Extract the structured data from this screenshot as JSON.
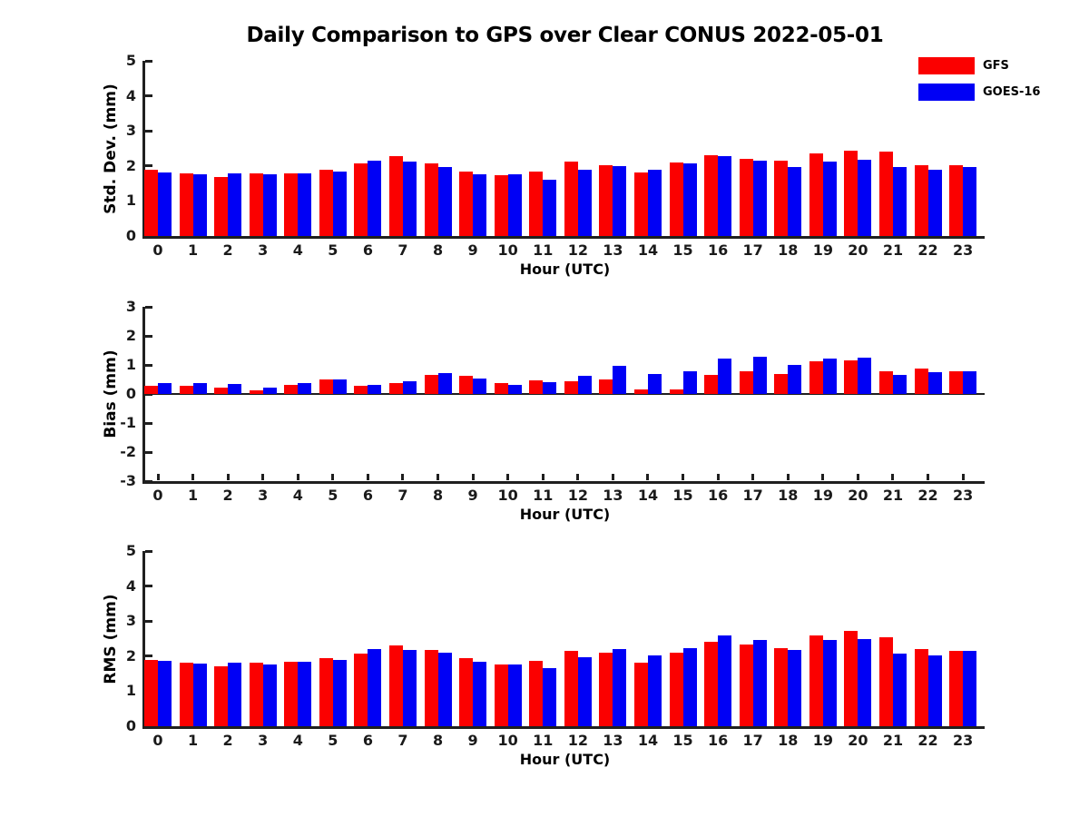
{
  "title": "Daily Comparison to GPS over Clear CONUS 2022-05-01",
  "legend": {
    "items": [
      {
        "label": "GFS",
        "color": "#fb0000"
      },
      {
        "label": "GOES-16",
        "color": "#0000f5"
      }
    ],
    "position": "top-right"
  },
  "chart_data": [
    {
      "type": "bar",
      "name": "stddev",
      "ylabel": "Std. Dev. (mm)",
      "xlabel": "Hour (UTC)",
      "ylim": [
        0,
        5
      ],
      "yticks": [
        0,
        1,
        2,
        3,
        4,
        5
      ],
      "grid": false,
      "categories": [
        0,
        1,
        2,
        3,
        4,
        5,
        6,
        7,
        8,
        9,
        10,
        11,
        12,
        13,
        14,
        15,
        16,
        17,
        18,
        19,
        20,
        21,
        22,
        23
      ],
      "series": [
        {
          "name": "GFS",
          "color": "#fb0000",
          "values": [
            1.88,
            1.8,
            1.68,
            1.8,
            1.8,
            1.9,
            2.06,
            2.29,
            2.08,
            1.84,
            1.74,
            1.83,
            2.12,
            2.02,
            1.82,
            2.1,
            2.3,
            2.21,
            2.15,
            2.36,
            2.44,
            2.41,
            2.01,
            2.03
          ]
        },
        {
          "name": "GOES-16",
          "color": "#0000f5",
          "values": [
            1.82,
            1.76,
            1.78,
            1.76,
            1.8,
            1.85,
            2.16,
            2.13,
            1.98,
            1.77,
            1.76,
            1.61,
            1.88,
            2.0,
            1.9,
            2.07,
            2.28,
            2.14,
            1.98,
            2.12,
            2.18,
            1.96,
            1.9,
            1.98
          ]
        }
      ]
    },
    {
      "type": "bar",
      "name": "bias",
      "ylabel": "Bias (mm)",
      "xlabel": "Hour (UTC)",
      "ylim": [
        -3,
        3
      ],
      "yticks": [
        -3,
        -2,
        -1,
        0,
        1,
        2,
        3
      ],
      "grid": false,
      "categories": [
        0,
        1,
        2,
        3,
        4,
        5,
        6,
        7,
        8,
        9,
        10,
        11,
        12,
        13,
        14,
        15,
        16,
        17,
        18,
        19,
        20,
        21,
        22,
        23
      ],
      "series": [
        {
          "name": "GFS",
          "color": "#fb0000",
          "values": [
            0.29,
            0.27,
            0.23,
            0.13,
            0.32,
            0.51,
            0.27,
            0.38,
            0.66,
            0.62,
            0.36,
            0.47,
            0.45,
            0.5,
            0.15,
            0.16,
            0.67,
            0.77,
            0.68,
            1.11,
            1.17,
            0.78,
            0.89,
            0.78
          ]
        },
        {
          "name": "GOES-16",
          "color": "#0000f5",
          "values": [
            0.39,
            0.36,
            0.34,
            0.22,
            0.36,
            0.51,
            0.3,
            0.45,
            0.72,
            0.54,
            0.3,
            0.41,
            0.61,
            0.96,
            0.7,
            0.79,
            1.23,
            1.27,
            0.99,
            1.21,
            1.24,
            0.65,
            0.74,
            0.78
          ]
        }
      ]
    },
    {
      "type": "bar",
      "name": "rms",
      "ylabel": "RMS (mm)",
      "xlabel": "Hour (UTC)",
      "ylim": [
        0,
        5
      ],
      "yticks": [
        0,
        1,
        2,
        3,
        4,
        5
      ],
      "grid": false,
      "categories": [
        0,
        1,
        2,
        3,
        4,
        5,
        6,
        7,
        8,
        9,
        10,
        11,
        12,
        13,
        14,
        15,
        16,
        17,
        18,
        19,
        20,
        21,
        22,
        23
      ],
      "series": [
        {
          "name": "GFS",
          "color": "#fb0000",
          "values": [
            1.9,
            1.82,
            1.71,
            1.81,
            1.84,
            1.95,
            2.08,
            2.3,
            2.17,
            1.94,
            1.76,
            1.87,
            2.15,
            2.1,
            1.82,
            2.11,
            2.4,
            2.33,
            2.22,
            2.6,
            2.72,
            2.55,
            2.2,
            2.16
          ]
        },
        {
          "name": "GOES-16",
          "color": "#0000f5",
          "values": [
            1.86,
            1.79,
            1.81,
            1.76,
            1.84,
            1.9,
            2.2,
            2.18,
            2.1,
            1.85,
            1.76,
            1.65,
            1.96,
            2.19,
            2.02,
            2.22,
            2.6,
            2.45,
            2.18,
            2.45,
            2.5,
            2.06,
            2.03,
            2.15
          ]
        }
      ]
    }
  ]
}
